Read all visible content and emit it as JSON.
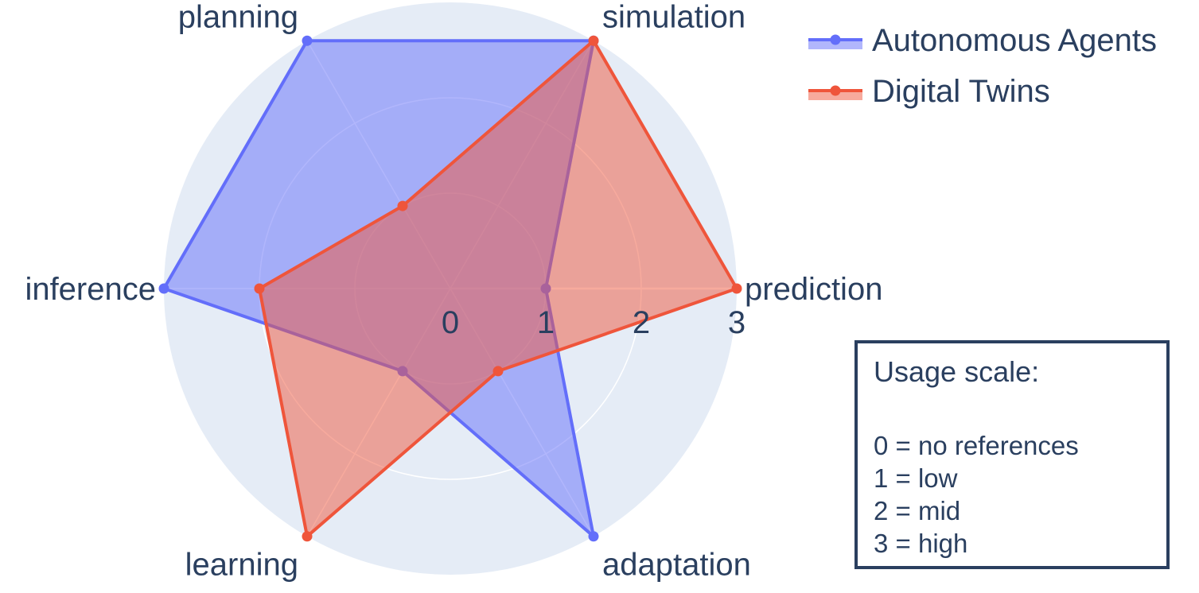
{
  "chart_data": {
    "type": "radar",
    "axes": [
      "prediction",
      "simulation",
      "planning",
      "inference",
      "learning",
      "adaptation"
    ],
    "radial_range": [
      0,
      3
    ],
    "radial_ticks": [
      "0",
      "1",
      "2",
      "3"
    ],
    "series": [
      {
        "name": "Autonomous Agents",
        "color": "#636efa",
        "values": [
          1,
          3,
          3,
          3,
          1,
          3
        ]
      },
      {
        "name": "Digital Twins",
        "color": "#ef553b",
        "values": [
          3,
          3,
          1,
          2,
          3,
          1
        ]
      }
    ],
    "legend_placement": "top-right",
    "grid": true,
    "polar_background": "#e5ecf6"
  },
  "scale_box": {
    "title": "Usage scale:",
    "items": [
      "0 = no references",
      "1 = low",
      "2 = mid",
      "3 = high"
    ]
  }
}
